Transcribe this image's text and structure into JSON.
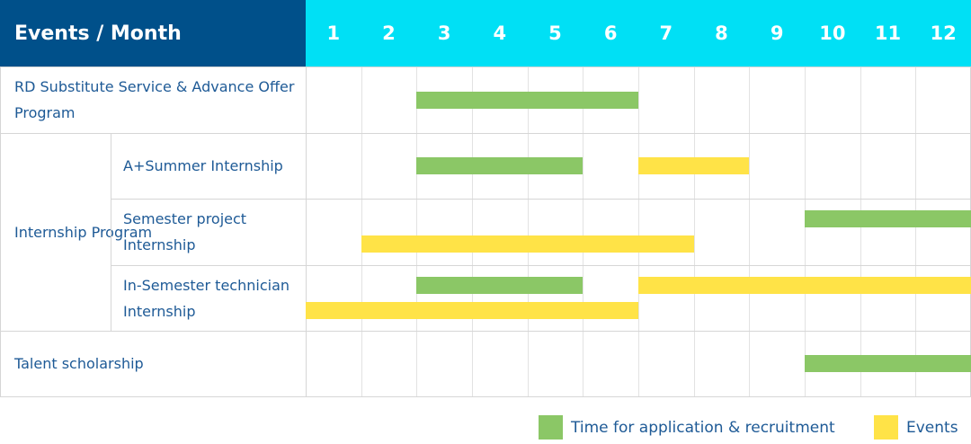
{
  "chart_data": {
    "type": "gantt",
    "header": {
      "title": "Events / Month"
    },
    "months": [
      "1",
      "2",
      "3",
      "4",
      "5",
      "6",
      "7",
      "8",
      "9",
      "10",
      "11",
      "12"
    ],
    "colors": {
      "header_dark": "#00508a",
      "header_accent": "#00e0f5",
      "application": "#8bc766",
      "events": "#ffe347",
      "text": "#1e5a96"
    },
    "legend": [
      {
        "key": "application",
        "label": "Time for application & recruitment",
        "color": "#8bc766"
      },
      {
        "key": "events",
        "label": "Events",
        "color": "#ffe347"
      }
    ],
    "legend_position": "bottom-right",
    "group": {
      "label": "Internship Program"
    },
    "rows": [
      {
        "label": "RD Substitute Service & Advance Offer Program",
        "bars": [
          {
            "type": "application",
            "start": 3,
            "end": 6,
            "track": 0
          }
        ]
      },
      {
        "label": "A+Summer Internship",
        "bars": [
          {
            "type": "application",
            "start": 3,
            "end": 5,
            "track": 0
          },
          {
            "type": "events",
            "start": 7,
            "end": 8,
            "track": 0
          }
        ]
      },
      {
        "label": "Semester project Internship",
        "bars": [
          {
            "type": "application",
            "start": 10,
            "end": 12,
            "track": 1
          },
          {
            "type": "events",
            "start": 2,
            "end": 7,
            "track": 2
          }
        ]
      },
      {
        "label": "In-Semester technician Internship",
        "bars": [
          {
            "type": "application",
            "start": 3,
            "end": 5,
            "track": 1
          },
          {
            "type": "events",
            "start": 7,
            "end": 12,
            "track": 1
          },
          {
            "type": "events",
            "start": 1,
            "end": 6,
            "track": 2
          }
        ]
      },
      {
        "label": "Talent scholarship",
        "bars": [
          {
            "type": "application",
            "start": 10,
            "end": 12,
            "track": 0
          }
        ]
      }
    ]
  }
}
